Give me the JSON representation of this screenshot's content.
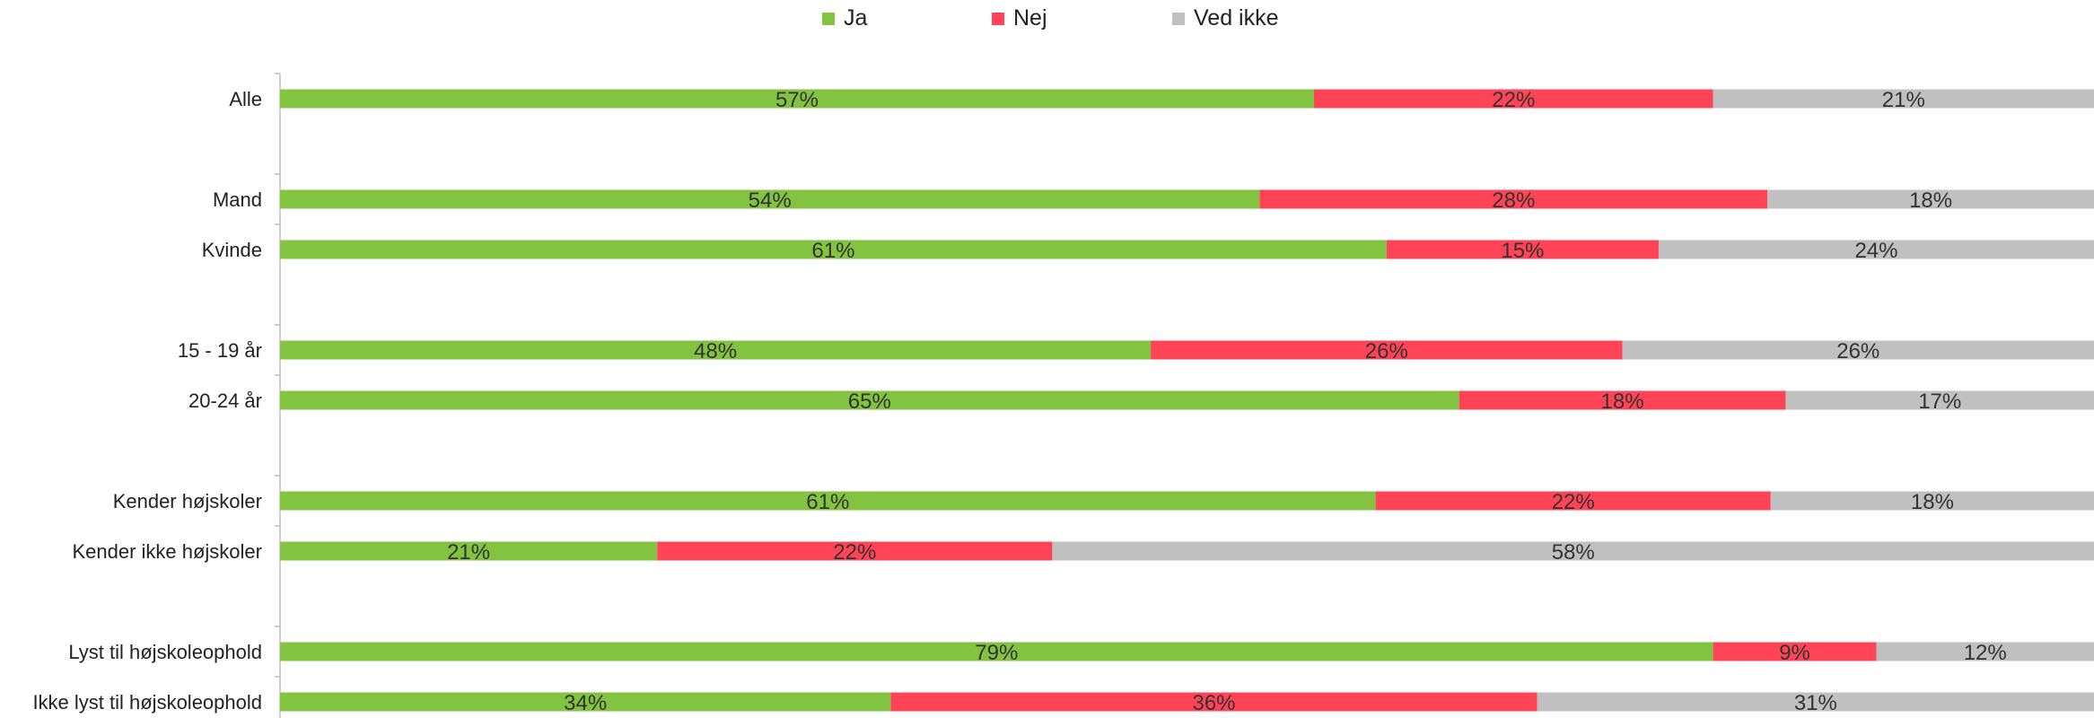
{
  "chart_data": {
    "type": "bar",
    "orientation": "horizontal",
    "stacked": true,
    "stack_total": 100,
    "value_suffix": "%",
    "legend_position": "top",
    "grid": false,
    "categories": [
      "Alle",
      "Mand",
      "Kvinde",
      "15 - 19 år",
      "20-24 år",
      "Kender højskoler",
      "Kender ikke højskoler",
      "Lyst til højskoleophold",
      "Ikke lyst til højskoleophold"
    ],
    "groups": [
      1,
      2,
      2,
      2,
      2
    ],
    "series": [
      {
        "name": "Ja",
        "color": "#82c341",
        "values": [
          57,
          54,
          61,
          48,
          65,
          61,
          21,
          79,
          34
        ]
      },
      {
        "name": "Nej",
        "color": "#ff4458",
        "values": [
          22,
          28,
          15,
          26,
          18,
          22,
          22,
          9,
          36
        ]
      },
      {
        "name": "Ved ikke",
        "color": "#c0c0c0",
        "values": [
          21,
          18,
          24,
          26,
          17,
          18,
          58,
          12,
          31
        ]
      }
    ],
    "title": "",
    "xlabel": "",
    "ylabel": ""
  }
}
